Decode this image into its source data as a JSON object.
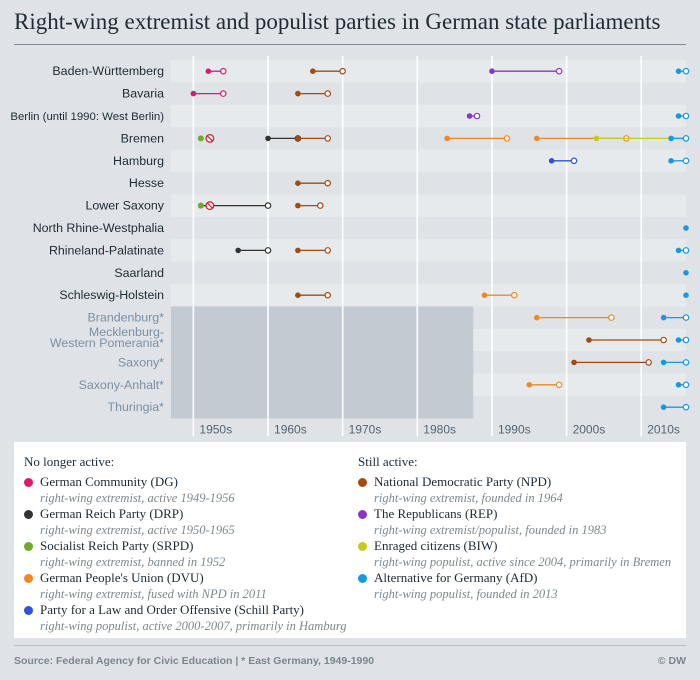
{
  "title": "Right-wing extremist and populist parties in German state parliaments",
  "colors": {
    "DG": "#e0176e",
    "DRP": "#333333",
    "SRPD": "#6fa82a",
    "DVU": "#ef8a22",
    "Schill": "#2c53d8",
    "NPD": "#a44a0e",
    "REP": "#8a34cc",
    "BIW": "#c8c81e",
    "AfD": "#1699e0"
  },
  "chart_data": {
    "type": "timeline",
    "xlim": [
      1947,
      2016
    ],
    "x_ticks": [
      "1950s",
      "1960s",
      "1970s",
      "1980s",
      "1990s",
      "2000s",
      "2010s"
    ],
    "states": [
      {
        "name": "Baden-Württemberg",
        "east": false
      },
      {
        "name": "Bavaria",
        "east": false
      },
      {
        "name": "Berlin (until 1990: West Berlin)",
        "east": false
      },
      {
        "name": "Bremen",
        "east": false
      },
      {
        "name": "Hamburg",
        "east": false
      },
      {
        "name": "Hesse",
        "east": false
      },
      {
        "name": "Lower Saxony",
        "east": false
      },
      {
        "name": "North Rhine-Westphalia",
        "east": false
      },
      {
        "name": "Rhineland-Palatinate",
        "east": false
      },
      {
        "name": "Saarland",
        "east": false
      },
      {
        "name": "Schleswig-Holstein",
        "east": false
      },
      {
        "name": "Brandenburg*",
        "east": true
      },
      {
        "name": "Mecklenburg-\nWestern Pomerania*",
        "east": true
      },
      {
        "name": "Saxony*",
        "east": true
      },
      {
        "name": "Saxony-Anhalt*",
        "east": true
      },
      {
        "name": "Thuringia*",
        "east": true
      }
    ],
    "periods": [
      {
        "state": 0,
        "party": "DG",
        "start": 1952,
        "end": 1954
      },
      {
        "state": 0,
        "party": "NPD",
        "start": 1966,
        "end": 1970
      },
      {
        "state": 0,
        "party": "REP",
        "start": 1990,
        "end": 1999
      },
      {
        "state": 0,
        "party": "AfD",
        "start": 2015,
        "end": 2016
      },
      {
        "state": 1,
        "party": "DG",
        "start": 1950,
        "end": 1954
      },
      {
        "state": 1,
        "party": "NPD",
        "start": 1964,
        "end": 1968
      },
      {
        "state": 2,
        "party": "REP",
        "start": 1987,
        "end": 1988
      },
      {
        "state": 2,
        "party": "AfD",
        "start": 2015,
        "end": 2016
      },
      {
        "state": 3,
        "party": "SRPD",
        "start": 1951,
        "end": 1951,
        "banned": true
      },
      {
        "state": 3,
        "party": "DRP",
        "start": 1960,
        "end": 1964
      },
      {
        "state": 3,
        "party": "NPD",
        "start": 1964,
        "end": 1968
      },
      {
        "state": 3,
        "party": "DVU",
        "start": 1984,
        "end": 1992
      },
      {
        "state": 3,
        "party": "DVU",
        "start": 1996,
        "end": 2008
      },
      {
        "state": 3,
        "party": "BIW",
        "start": 2004,
        "end": 2016
      },
      {
        "state": 3,
        "party": "AfD",
        "start": 2014,
        "end": 2016
      },
      {
        "state": 4,
        "party": "Schill",
        "start": 1998,
        "end": 2001
      },
      {
        "state": 4,
        "party": "AfD",
        "start": 2014,
        "end": 2016
      },
      {
        "state": 5,
        "party": "NPD",
        "start": 1964,
        "end": 1968
      },
      {
        "state": 6,
        "party": "DRP",
        "start": 1951,
        "end": 1960
      },
      {
        "state": 6,
        "party": "SRPD",
        "start": 1951,
        "end": 1951,
        "banned": true
      },
      {
        "state": 6,
        "party": "NPD",
        "start": 1964,
        "end": 1967
      },
      {
        "state": 7,
        "party": "AfD",
        "start": 2016,
        "end": 2016
      },
      {
        "state": 8,
        "party": "DRP",
        "start": 1956,
        "end": 1960
      },
      {
        "state": 8,
        "party": "NPD",
        "start": 1964,
        "end": 1968
      },
      {
        "state": 8,
        "party": "AfD",
        "start": 2015,
        "end": 2016
      },
      {
        "state": 9,
        "party": "AfD",
        "start": 2016,
        "end": 2016
      },
      {
        "state": 10,
        "party": "NPD",
        "start": 1964,
        "end": 1968
      },
      {
        "state": 10,
        "party": "DVU",
        "start": 1989,
        "end": 1993
      },
      {
        "state": 10,
        "party": "AfD",
        "start": 2016,
        "end": 2016
      },
      {
        "state": 11,
        "party": "DVU",
        "start": 1996,
        "end": 2006
      },
      {
        "state": 11,
        "party": "AfD",
        "start": 2013,
        "end": 2016
      },
      {
        "state": 12,
        "party": "NPD",
        "start": 2003,
        "end": 2013
      },
      {
        "state": 12,
        "party": "AfD",
        "start": 2015,
        "end": 2016
      },
      {
        "state": 13,
        "party": "NPD",
        "start": 2001,
        "end": 2011
      },
      {
        "state": 13,
        "party": "AfD",
        "start": 2013,
        "end": 2016
      },
      {
        "state": 14,
        "party": "DVU",
        "start": 1995,
        "end": 1999
      },
      {
        "state": 14,
        "party": "AfD",
        "start": 2015,
        "end": 2016
      },
      {
        "state": 15,
        "party": "AfD",
        "start": 2013,
        "end": 2016
      }
    ]
  },
  "legend": {
    "inactive_heading": "No longer active:",
    "active_heading": "Still active:",
    "inactive": [
      {
        "key": "DG",
        "name": "German Community (DG)",
        "desc": "right-wing extremist, active 1949-1956"
      },
      {
        "key": "DRP",
        "name": "German Reich Party (DRP)",
        "desc": "right-wing extremist, active 1950-1965"
      },
      {
        "key": "SRPD",
        "name": "Socialist Reich Party (SRPD)",
        "desc": "right-wing extremist, banned in 1952"
      },
      {
        "key": "DVU",
        "name": "German People's Union (DVU)",
        "desc": "right-wing extremist, fused with NPD in 2011"
      },
      {
        "key": "Schill",
        "name": "Party for a Law and Order Offensive (Schill Party)",
        "desc": "right-wing populist, active 2000-2007, primarily in Hamburg"
      }
    ],
    "active": [
      {
        "key": "NPD",
        "name": "National Democratic Party (NPD)",
        "desc": "right-wing extremist, founded in 1964"
      },
      {
        "key": "REP",
        "name": "The Republicans (REP)",
        "desc": "right-wing extremist/populist, founded in 1983"
      },
      {
        "key": "BIW",
        "name": "Enraged citizens (BIW)",
        "desc": "right-wing populist, active since 2004, primarily in Bremen"
      },
      {
        "key": "AfD",
        "name": "Alternative for Germany (AfD)",
        "desc": "right-wing populist, founded in 2013"
      }
    ]
  },
  "footer": {
    "source": "Source: Federal Agency for Civic Education  | * East Germany, 1949-1990",
    "brand": "© DW"
  }
}
